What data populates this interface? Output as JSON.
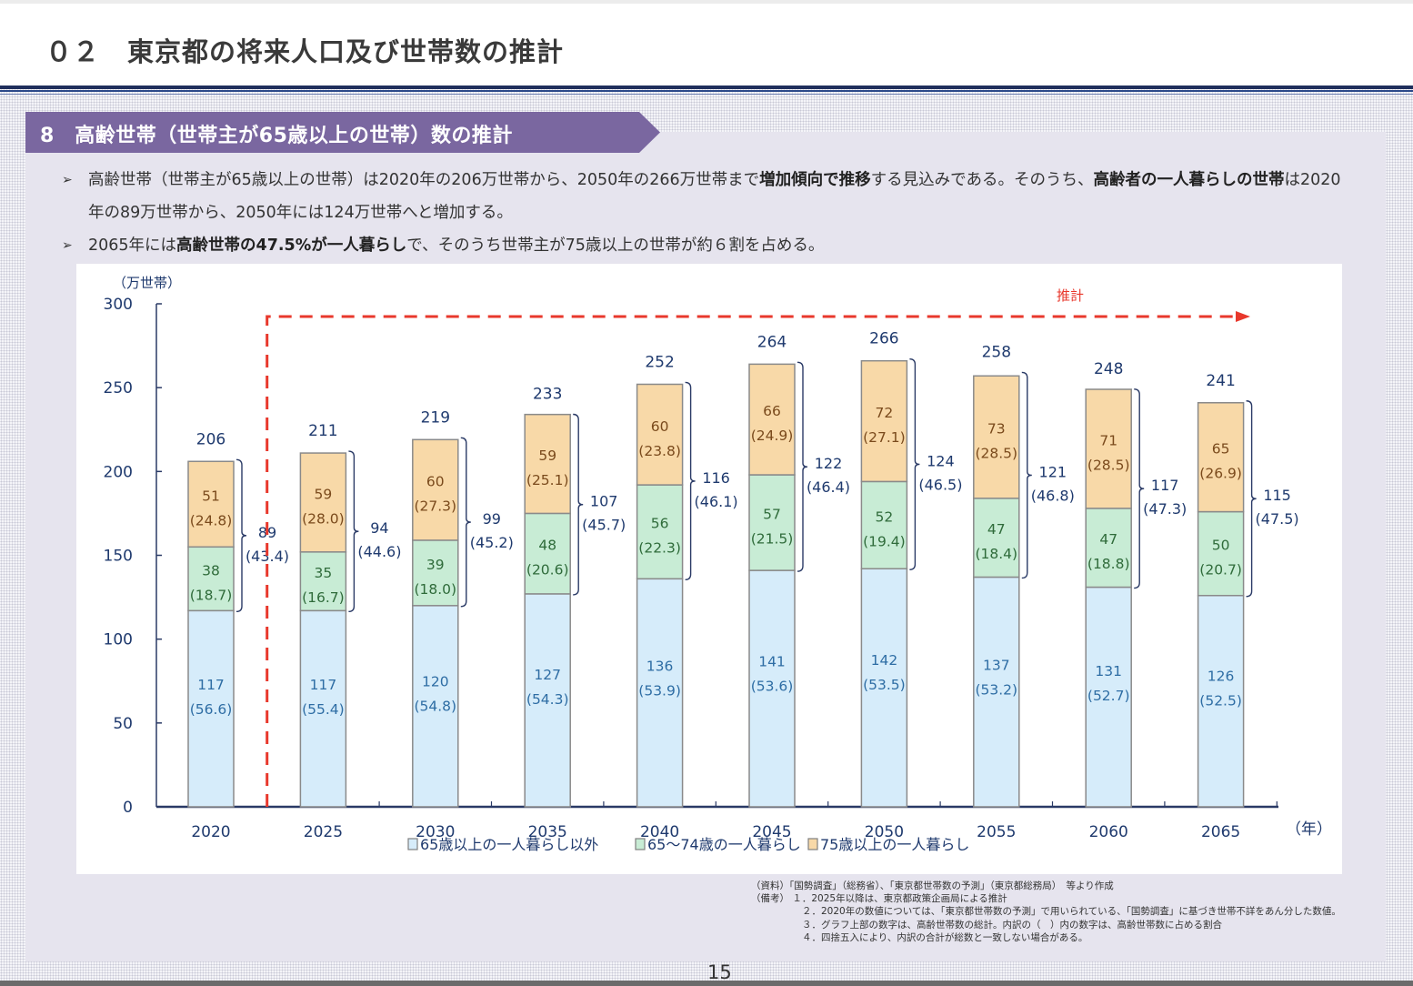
{
  "header": {
    "title": "０２　東京都の将来人口及び世帯数の推計"
  },
  "section": {
    "title": "8　高齢世帯（世帯主が65歳以上の世帯）数の推計",
    "banner_color": "#7a67a0"
  },
  "bullets": [
    {
      "marker": "➢",
      "segments": [
        {
          "text": "高齢世帯（世帯主が65歳以上の世帯）は2020年の206万世帯から、2050年の266万世帯まで",
          "bold": false
        },
        {
          "text": "増加傾向で推移",
          "bold": true
        },
        {
          "text": "する見込みである。そのうち、",
          "bold": false
        },
        {
          "text": "高齢者の一人暮らしの世帯",
          "bold": true
        },
        {
          "text": "は2020年の89万世帯から、2050年には124万世帯へと増加する。",
          "bold": false
        }
      ]
    },
    {
      "marker": "➢",
      "segments": [
        {
          "text": "2065年には",
          "bold": false
        },
        {
          "text": "高齢世帯の47.5%が一人暮らし",
          "bold": true
        },
        {
          "text": "で、そのうち世帯主が75歳以上の世帯が約６割を占める。",
          "bold": false
        }
      ]
    }
  ],
  "chart_data": {
    "type": "bar",
    "stacked": true,
    "title": "",
    "ylabel": "（万世帯）",
    "xlabel": "（年）",
    "ylim": [
      0,
      300
    ],
    "yticks": [
      0,
      50,
      100,
      150,
      200,
      250,
      300
    ],
    "categories": [
      "2020",
      "2025",
      "2030",
      "2035",
      "2040",
      "2045",
      "2050",
      "2055",
      "2060",
      "2065"
    ],
    "series": [
      {
        "name": "65歳以上の一人暮らし以外",
        "color": "#d6ecfa",
        "label_color": "#2e6da4",
        "values": [
          117,
          117,
          120,
          127,
          136,
          141,
          142,
          137,
          131,
          126
        ],
        "shares": [
          "56.6",
          "55.4",
          "54.8",
          "54.3",
          "53.9",
          "53.6",
          "53.5",
          "53.2",
          "52.7",
          "52.5"
        ]
      },
      {
        "name": "65～74歳の一人暮らし",
        "color": "#c8ecd5",
        "label_color": "#2f6b3a",
        "values": [
          38,
          35,
          39,
          48,
          56,
          57,
          52,
          47,
          47,
          50
        ],
        "shares": [
          "18.7",
          "16.7",
          "18.0",
          "20.6",
          "22.3",
          "21.5",
          "19.4",
          "18.4",
          "18.8",
          "20.7"
        ]
      },
      {
        "name": "75歳以上の一人暮らし",
        "color": "#f8d9a8",
        "label_color": "#7a4a1c",
        "values": [
          51,
          59,
          60,
          59,
          60,
          66,
          72,
          73,
          71,
          65
        ],
        "shares": [
          "24.8",
          "28.0",
          "27.3",
          "25.1",
          "23.8",
          "24.9",
          "27.1",
          "28.5",
          "28.5",
          "26.9"
        ]
      }
    ],
    "totals": [
      206,
      211,
      219,
      233,
      252,
      264,
      266,
      258,
      248,
      241
    ],
    "single_living": {
      "values": [
        89,
        94,
        99,
        107,
        116,
        122,
        124,
        121,
        117,
        115
      ],
      "shares": [
        "43.4",
        "44.6",
        "45.2",
        "45.7",
        "46.1",
        "46.4",
        "46.5",
        "46.8",
        "47.3",
        "47.5"
      ]
    },
    "annotation": {
      "text": "推計",
      "from_category": "2025",
      "color": "#e8382c"
    },
    "legend_position": "bottom",
    "grid": false,
    "axis_color": "#2a3a66",
    "label_color": "#1f3a6e"
  },
  "notes": {
    "source": "（資料）「国勢調査」（総務省）、「東京都世帯数の予測」（東京都総務局）　等より作成",
    "remarks_label": "（備考）",
    "remarks": [
      "１．2025年以降は、東京都政策企画局による推計",
      "２．2020年の数値については、「東京都世帯数の予測」で用いられている、「国勢調査」に基づき世帯不詳をあん分した数値。",
      "３．グラフ上部の数字は、高齢世帯数の総計。内訳の（　）内の数字は、高齢世帯数に占める割合",
      "４．四捨五入により、内訳の合計が総数と一致しない場合がある。"
    ]
  },
  "page_number": "15"
}
